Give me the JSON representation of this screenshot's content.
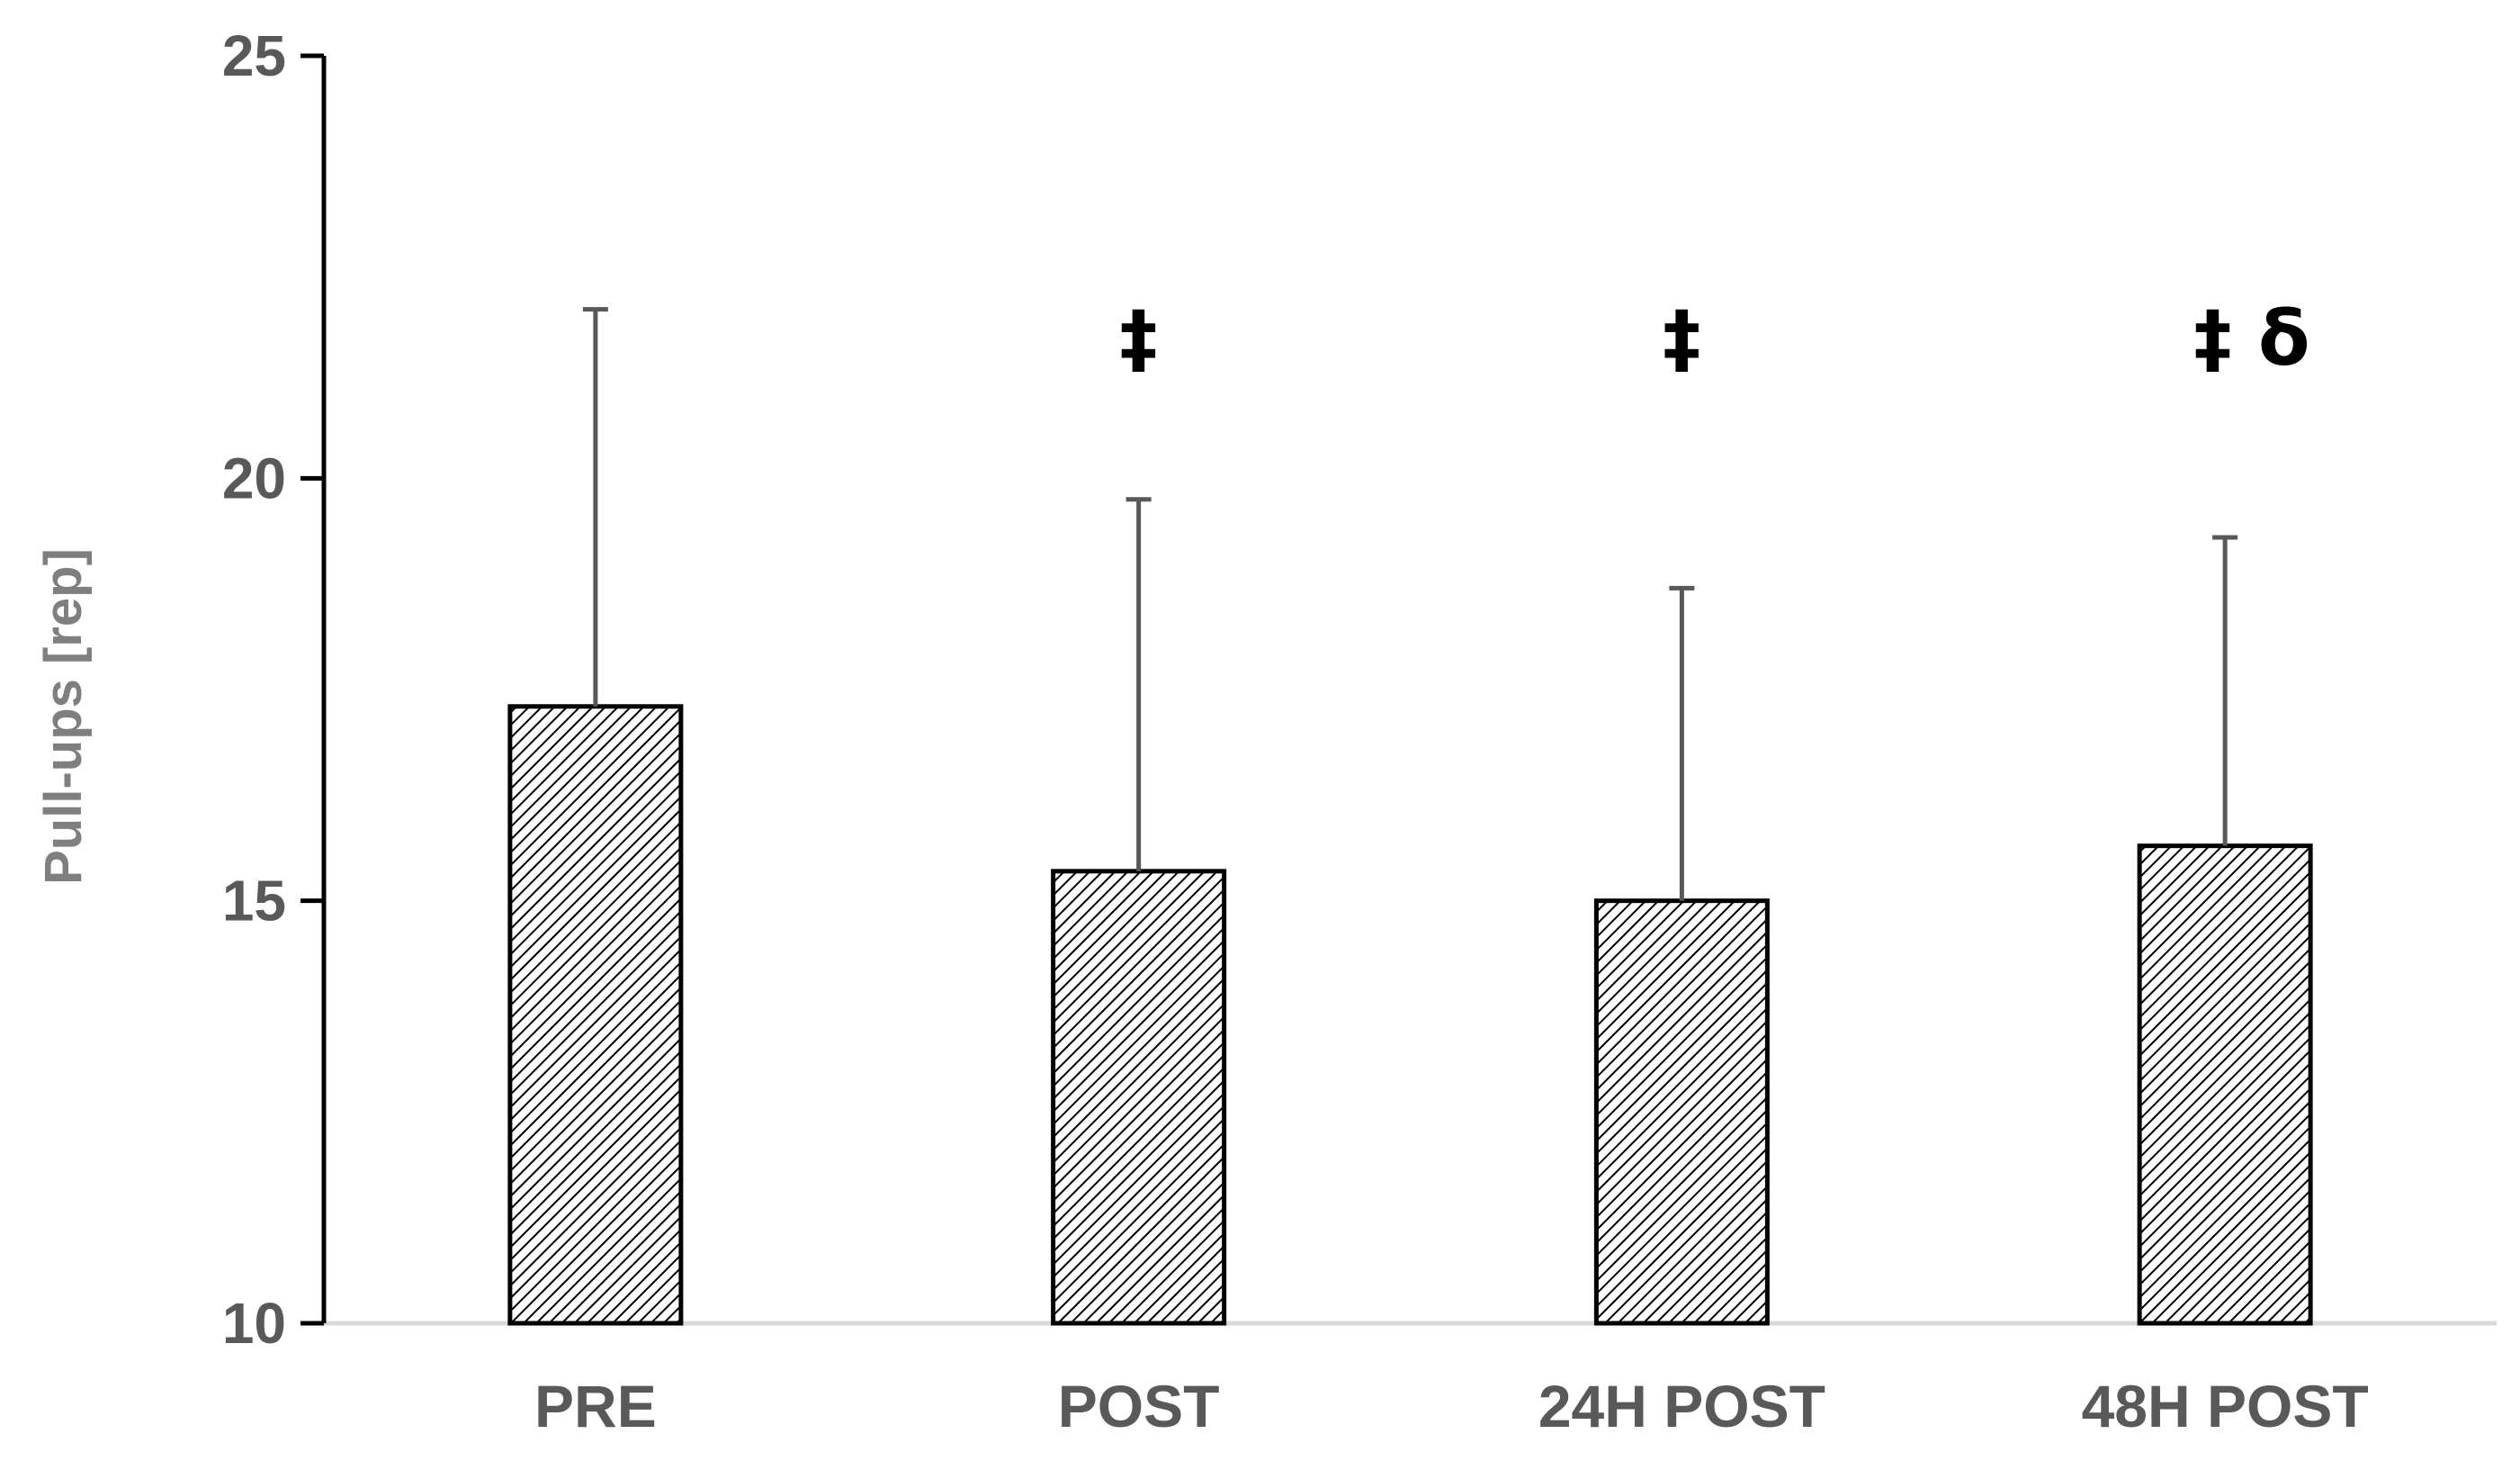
{
  "chart_data": {
    "type": "bar",
    "title": "",
    "xlabel": "",
    "ylabel": "Pull-ups [rep]",
    "ylim": [
      10,
      25
    ],
    "yticks": [
      "10",
      "15",
      "20",
      "25"
    ],
    "categories": [
      "PRE",
      "POST",
      "24H POST",
      "48H POST"
    ],
    "series": [
      {
        "values": [
          17.3,
          15.35,
          15.0,
          15.65
        ],
        "error_upper": [
          4.7,
          4.4,
          3.7,
          3.65
        ],
        "pattern": "diagonal-hatch"
      }
    ],
    "significance_labels": [
      "",
      "‡",
      "‡",
      "‡ δ"
    ],
    "grid": false,
    "legend": "none"
  },
  "colors": {
    "bar_fill": "#ffffff",
    "hatch": "#000000",
    "bar_border": "#000000",
    "error_bar": "#595959",
    "axis": "#000000",
    "baseline": "#d9d9d9",
    "tick_text": "#595959",
    "axis_title": "#7f7f7f"
  }
}
